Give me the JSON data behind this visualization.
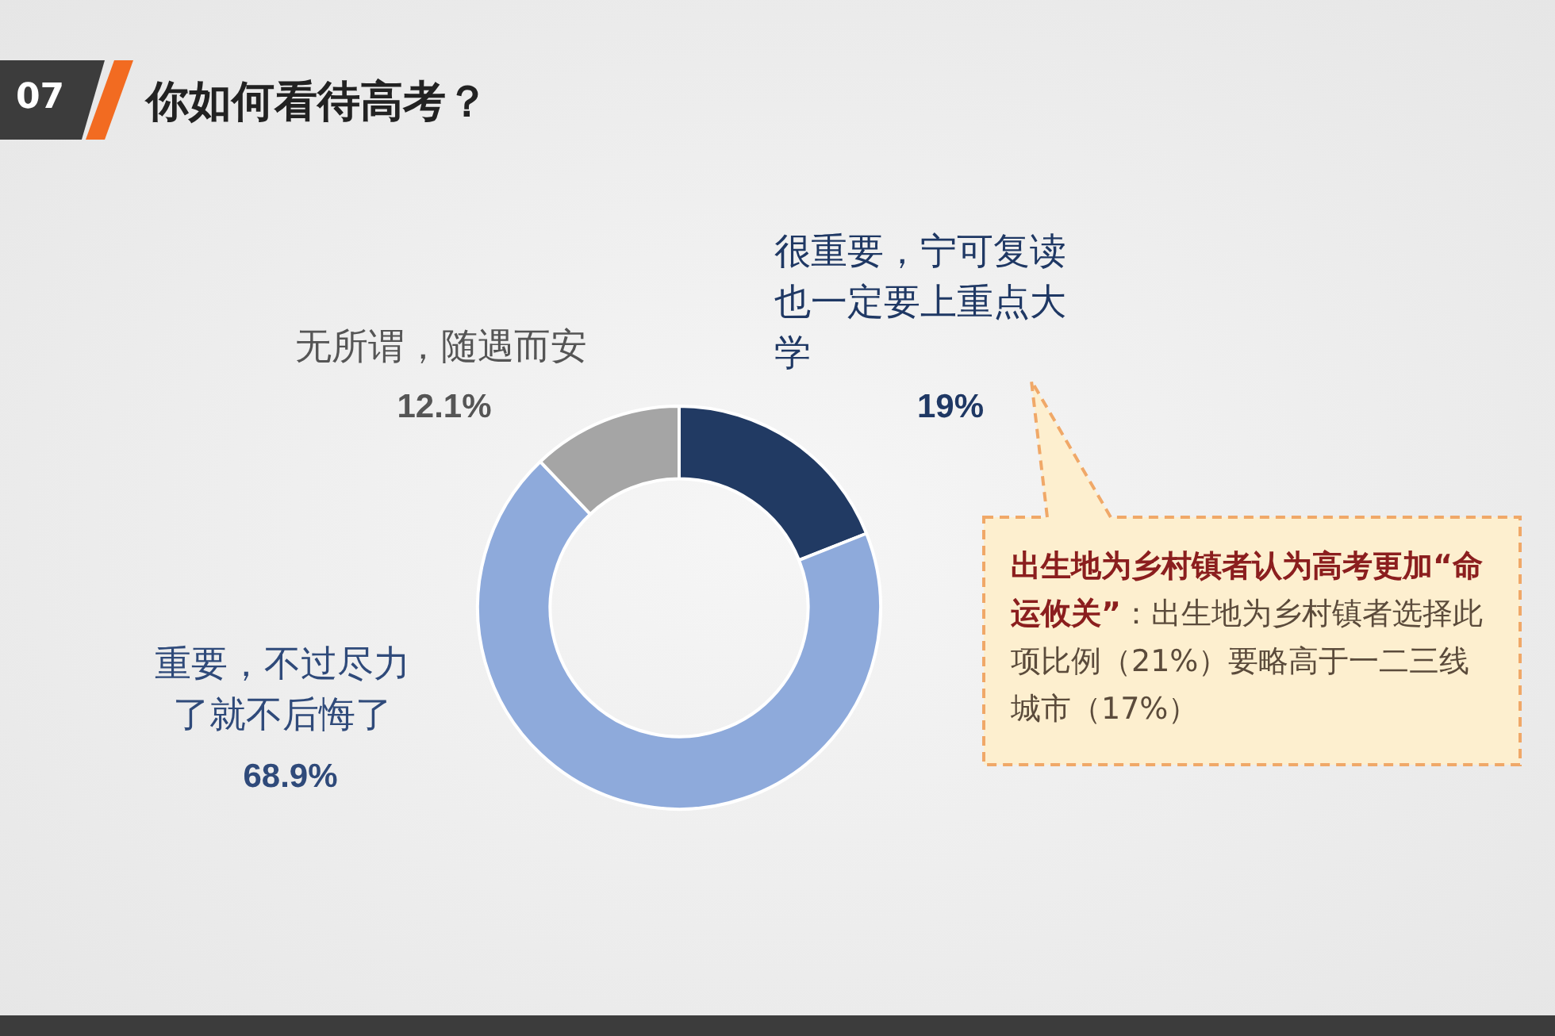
{
  "chart_data": {
    "type": "donut",
    "title": "你如何看待高考？",
    "categories": [
      "很重要，宁可复读也一定要上重点大学",
      "重要，不过尽力了就不后悔了",
      "无所谓，随遇而安"
    ],
    "values": [
      19,
      68.9,
      12.1
    ],
    "colors": [
      "#213a63",
      "#8eaadb",
      "#a5a5a5"
    ],
    "value_labels": [
      "19%",
      "68.9%",
      "12.1%"
    ],
    "legend": false,
    "annotations": [
      "07",
      "出生地为乡村镇者认为高考更加“命运攸关”",
      "：出生地为乡村镇者选择此项比例（21%）要略高于一二三线城市（17%）"
    ]
  }
}
